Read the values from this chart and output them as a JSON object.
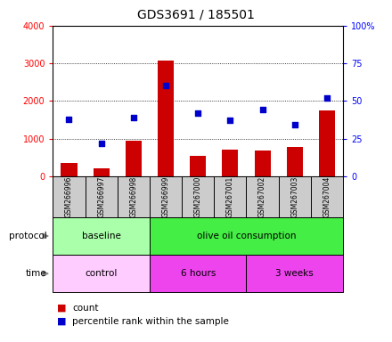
{
  "title": "GDS3691 / 185501",
  "samples": [
    "GSM266996",
    "GSM266997",
    "GSM266998",
    "GSM266999",
    "GSM267000",
    "GSM267001",
    "GSM267002",
    "GSM267003",
    "GSM267004"
  ],
  "count_values": [
    350,
    200,
    950,
    3080,
    550,
    700,
    680,
    780,
    1750
  ],
  "percentile_values": [
    38,
    22,
    39,
    60,
    42,
    37,
    44,
    34,
    52
  ],
  "bar_color": "#cc0000",
  "dot_color": "#0000cc",
  "left_ylim": [
    0,
    4000
  ],
  "right_ylim": [
    0,
    100
  ],
  "left_yticks": [
    0,
    1000,
    2000,
    3000,
    4000
  ],
  "right_yticks": [
    0,
    25,
    50,
    75,
    100
  ],
  "right_yticklabels": [
    "0",
    "25",
    "50",
    "75",
    "100%"
  ],
  "protocol_baseline_color": "#aaffaa",
  "protocol_olive_color": "#44ee44",
  "time_control_color": "#ffccff",
  "time_6h_color": "#ee44ee",
  "time_3w_color": "#ee44ee",
  "sample_bg_color": "#cccccc",
  "background_color": "#ffffff",
  "bar_width": 0.5,
  "fig_width": 4.4,
  "fig_height": 3.84,
  "dpi": 100
}
